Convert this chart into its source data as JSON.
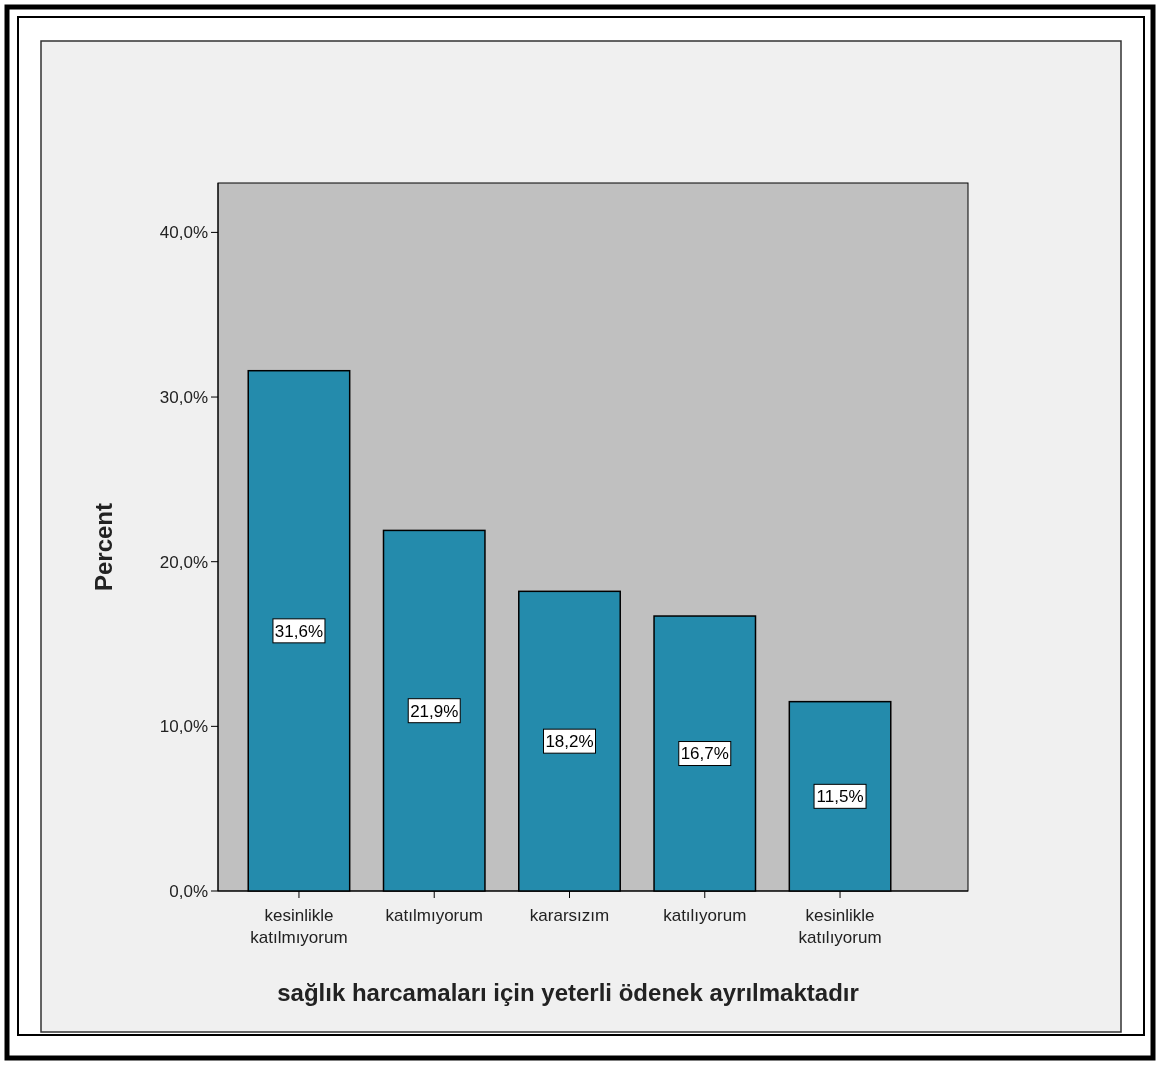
{
  "chart_data": {
    "type": "bar",
    "xlabel": "sağlık harcamaları için yeterli ödenek ayrılmaktadır",
    "ylabel": "Percent",
    "categories": [
      "kesinlikle katılmıyorum",
      "katılmıyorum",
      "kararsızım",
      "katılıyorum",
      "kesinlikle katılıyorum"
    ],
    "values": [
      31.6,
      21.9,
      18.2,
      16.7,
      11.5
    ],
    "value_labels": [
      "31,6%",
      "21,9%",
      "18,2%",
      "16,7%",
      "11,5%"
    ],
    "color": "#248bac",
    "ylim": [
      0,
      43
    ],
    "yticks": [
      {
        "value": 0,
        "label": "0,0%"
      },
      {
        "value": 10,
        "label": "10,0%"
      },
      {
        "value": 20,
        "label": "20,0%"
      },
      {
        "value": 30,
        "label": "30,0%"
      },
      {
        "value": 40,
        "label": "40,0%"
      }
    ],
    "grid": false
  }
}
